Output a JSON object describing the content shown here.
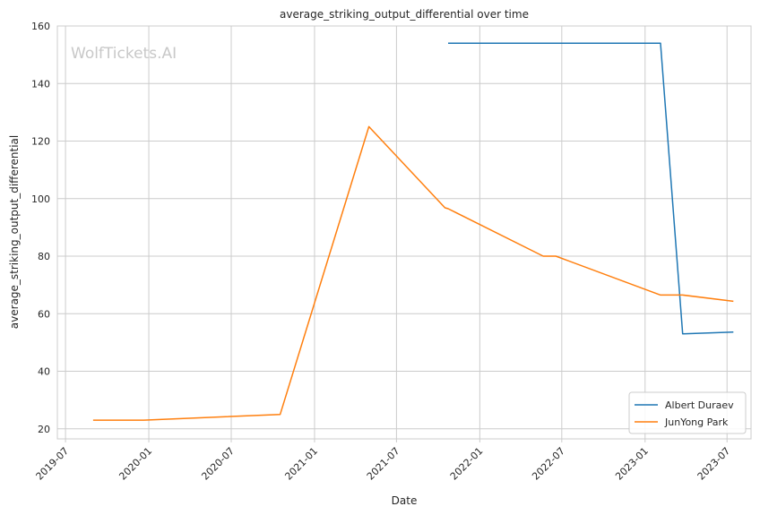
{
  "watermark": "WolfTickets.AI",
  "chart_data": {
    "type": "line",
    "title": "average_striking_output_differential over time",
    "xlabel": "Date",
    "ylabel": "average_striking_output_differential",
    "xlim": [
      "2019-06-13",
      "2023-08-23"
    ],
    "ylim": [
      16.5,
      160
    ],
    "grid": true,
    "legend": "bottom-right",
    "x_ticks": [
      "2019-07-01",
      "2020-01-01",
      "2020-07-01",
      "2021-01-01",
      "2021-07-01",
      "2022-01-01",
      "2022-07-01",
      "2023-01-01",
      "2023-07-01"
    ],
    "x_tick_labels": [
      "2019-07",
      "2020-01",
      "2020-07",
      "2021-01",
      "2021-07",
      "2022-01",
      "2022-07",
      "2023-01",
      "2023-07"
    ],
    "y_ticks": [
      20,
      40,
      60,
      80,
      100,
      120,
      140,
      160
    ],
    "series": [
      {
        "name": "Albert Duraev",
        "color": "#1f77b4",
        "x": [
          "2021-10-23",
          "2023-02-04",
          "2023-03-25",
          "2023-07-15"
        ],
        "y": [
          154,
          154,
          53,
          53.6
        ]
      },
      {
        "name": "JunYong Park",
        "color": "#ff7f0e",
        "x": [
          "2019-08-31",
          "2019-12-21",
          "2020-10-17",
          "2021-05-01",
          "2021-10-16",
          "2021-10-23",
          "2022-05-21",
          "2022-06-18",
          "2023-02-04",
          "2023-03-25",
          "2023-07-15"
        ],
        "y": [
          23,
          23,
          25,
          125,
          96.8,
          96.5,
          80,
          80,
          66.5,
          66.5,
          64.3
        ]
      }
    ]
  }
}
